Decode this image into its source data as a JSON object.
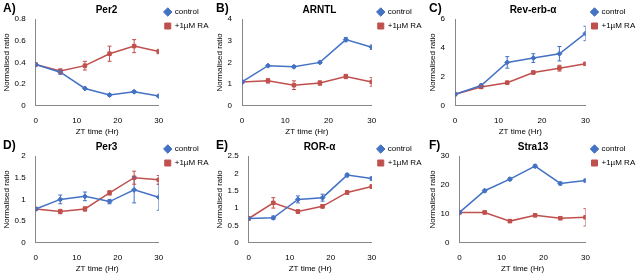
{
  "chart_data": [
    {
      "type": "line",
      "annotation": "A)",
      "title": "Per2",
      "x_label": "ZT time (Hr)",
      "y_label": "Normalised ratio",
      "x": [
        0,
        6,
        12,
        18,
        24,
        30
      ],
      "xlim": [
        0,
        30
      ],
      "xticks": [
        0,
        10,
        20,
        30
      ],
      "ylim": [
        0,
        0.8
      ],
      "yticks": [
        0,
        0.2,
        0.4,
        0.6,
        0.8
      ],
      "grid": false,
      "legend": "right",
      "series": [
        {
          "name": "control",
          "color": "#4472c4",
          "marker": "diamond",
          "values": [
            0.38,
            0.31,
            0.16,
            0.1,
            0.13,
            0.09
          ],
          "errors": [
            0,
            0.02,
            0.01,
            0.01,
            0.01,
            0.01
          ]
        },
        {
          "name": "+1µM RA",
          "color": "#c0504d",
          "marker": "square",
          "values": [
            0.38,
            0.32,
            0.37,
            0.48,
            0.55,
            0.5
          ],
          "errors": [
            0,
            0.02,
            0.04,
            0.07,
            0.06,
            0.02
          ]
        }
      ]
    },
    {
      "type": "line",
      "annotation": "B)",
      "title": "ARNTL",
      "x_label": "ZT time (Hr)",
      "y_label": "Normalised ratio",
      "x": [
        0,
        6,
        12,
        18,
        24,
        30
      ],
      "xlim": [
        0,
        30
      ],
      "xticks": [
        0,
        10,
        20,
        30
      ],
      "ylim": [
        0,
        4
      ],
      "yticks": [
        0,
        1,
        2,
        3,
        4
      ],
      "grid": false,
      "legend": "right",
      "series": [
        {
          "name": "control",
          "color": "#4472c4",
          "marker": "diamond",
          "values": [
            1.1,
            1.85,
            1.8,
            2.0,
            3.05,
            2.7
          ],
          "errors": [
            0,
            0.05,
            0.05,
            0.05,
            0.1,
            0.1
          ]
        },
        {
          "name": "+1µM RA",
          "color": "#c0504d",
          "marker": "square",
          "values": [
            1.1,
            1.15,
            0.95,
            1.05,
            1.35,
            1.1
          ],
          "errors": [
            0,
            0.1,
            0.2,
            0.1,
            0.1,
            0.2
          ]
        }
      ]
    },
    {
      "type": "line",
      "annotation": "C)",
      "title": "Rev-erb-α",
      "x_label": "ZT time (Hr)",
      "y_label": "Normalised ratio",
      "x": [
        0,
        6,
        12,
        18,
        24,
        30
      ],
      "xlim": [
        0,
        30
      ],
      "xticks": [
        0,
        10,
        20,
        30
      ],
      "ylim": [
        0,
        6
      ],
      "yticks": [
        0,
        2,
        4,
        6
      ],
      "grid": false,
      "legend": "right",
      "series": [
        {
          "name": "control",
          "color": "#4472c4",
          "marker": "diamond",
          "values": [
            0.8,
            1.4,
            3.0,
            3.3,
            3.6,
            5.0
          ],
          "errors": [
            0,
            0.1,
            0.4,
            0.3,
            0.5,
            0.5
          ]
        },
        {
          "name": "+1µM RA",
          "color": "#c0504d",
          "marker": "square",
          "values": [
            0.8,
            1.3,
            1.6,
            2.3,
            2.6,
            2.9
          ],
          "errors": [
            0,
            0.1,
            0.1,
            0.1,
            0.2,
            0.1
          ]
        }
      ]
    },
    {
      "type": "line",
      "annotation": "D)",
      "title": "Per3",
      "x_label": "ZT time (Hr)",
      "y_label": "Normalised ratio",
      "x": [
        0,
        6,
        12,
        18,
        24,
        30
      ],
      "xlim": [
        0,
        30
      ],
      "xticks": [
        0,
        10,
        20,
        30
      ],
      "ylim": [
        0,
        2
      ],
      "yticks": [
        0,
        0.5,
        1,
        1.5,
        2
      ],
      "grid": false,
      "legend": "right",
      "series": [
        {
          "name": "control",
          "color": "#4472c4",
          "marker": "diamond",
          "values": [
            0.78,
            1.0,
            1.07,
            0.95,
            1.22,
            1.05
          ],
          "errors": [
            0,
            0.1,
            0.1,
            0.05,
            0.3,
            0.3
          ]
        },
        {
          "name": "+1µM RA",
          "color": "#c0504d",
          "marker": "square",
          "values": [
            0.78,
            0.72,
            0.78,
            1.15,
            1.5,
            1.45
          ],
          "errors": [
            0,
            0.05,
            0.05,
            0.05,
            0.15,
            0.1
          ]
        }
      ]
    },
    {
      "type": "line",
      "annotation": "E)",
      "title": "ROR-α",
      "x_label": "ZT time (Hr)",
      "y_label": "Normalised ratio",
      "x": [
        0,
        6,
        12,
        18,
        24,
        30
      ],
      "xlim": [
        0,
        30
      ],
      "xticks": [
        0,
        10,
        20,
        30
      ],
      "ylim": [
        0,
        2.5
      ],
      "yticks": [
        0,
        0.5,
        1,
        1.5,
        2,
        2.5
      ],
      "grid": false,
      "legend": "right",
      "series": [
        {
          "name": "control",
          "color": "#4472c4",
          "marker": "diamond",
          "values": [
            0.7,
            0.72,
            1.25,
            1.3,
            1.95,
            1.85
          ],
          "errors": [
            0,
            0.05,
            0.1,
            0.1,
            0.05,
            0.05
          ]
        },
        {
          "name": "+1µM RA",
          "color": "#c0504d",
          "marker": "square",
          "values": [
            0.7,
            1.15,
            0.9,
            1.05,
            1.45,
            1.62
          ],
          "errors": [
            0,
            0.15,
            0.05,
            0.05,
            0.05,
            0.05
          ]
        }
      ]
    },
    {
      "type": "line",
      "annotation": "F)",
      "title": "Stra13",
      "x_label": "ZT time (Hr)",
      "y_label": "Normalised ratio",
      "x": [
        0,
        6,
        12,
        18,
        24,
        30
      ],
      "xlim": [
        0,
        30
      ],
      "xticks": [
        0,
        10,
        20,
        30
      ],
      "ylim": [
        0,
        30
      ],
      "yticks": [
        0,
        10,
        20,
        30
      ],
      "grid": false,
      "legend": "right",
      "series": [
        {
          "name": "control",
          "color": "#4472c4",
          "marker": "diamond",
          "values": [
            10.5,
            18,
            22,
            26.5,
            20.5,
            21.5
          ],
          "errors": [
            0,
            0.5,
            0.5,
            0.5,
            0.5,
            0.5
          ]
        },
        {
          "name": "+1µM RA",
          "color": "#c0504d",
          "marker": "square",
          "values": [
            10.5,
            10.5,
            7.5,
            9.5,
            8.5,
            8.8
          ],
          "errors": [
            0,
            0.5,
            0.5,
            0.5,
            0.5,
            3
          ]
        }
      ]
    }
  ]
}
